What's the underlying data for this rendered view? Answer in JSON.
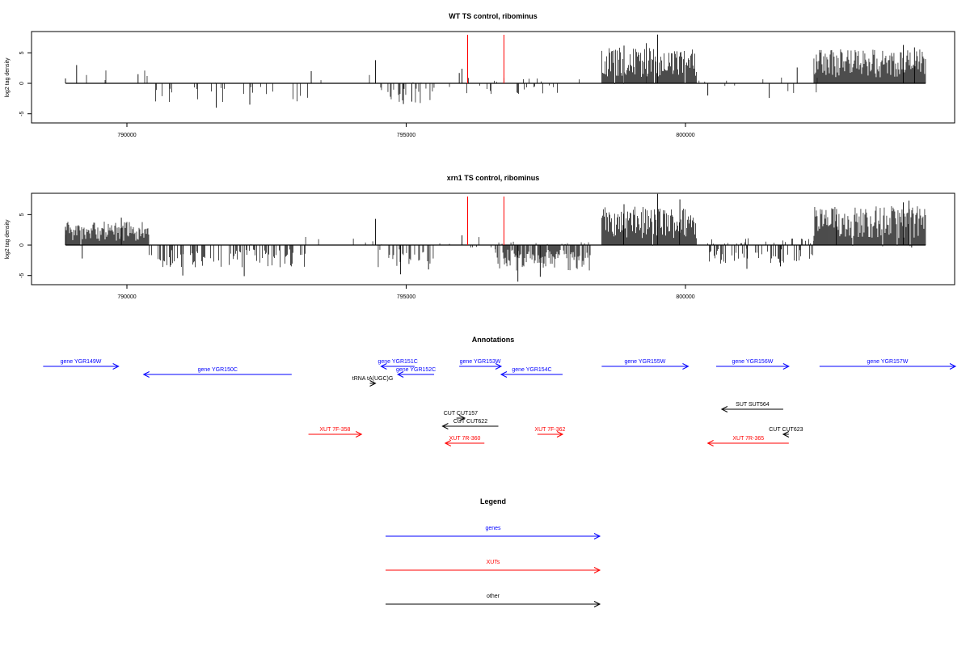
{
  "chart_data": [
    {
      "type": "bar",
      "title": "WT TS control, ribominus",
      "ylabel": "log2 tag density",
      "xlabel": "",
      "xlim": [
        788200,
        804900
      ],
      "ylim": [
        -6.5,
        8.5
      ],
      "x_ticks": [
        790000,
        795000,
        800000
      ],
      "x_tick_labels": [
        "790000",
        "795000",
        "800000"
      ],
      "y_ticks": [
        -5,
        0,
        5
      ],
      "y_tick_labels": [
        "-5",
        "0",
        "5"
      ],
      "baseline": 0,
      "x_range": [
        788900,
        804300
      ],
      "grid": false,
      "density_segments": [
        {
          "x": [
            788900,
            790500
          ],
          "pos": 2.0,
          "neg": 0.1,
          "density": 0.05
        },
        {
          "x": [
            790500,
            793300
          ],
          "pos": 0.1,
          "neg": 2.2,
          "density": 0.12
        },
        {
          "x": [
            793300,
            794500
          ],
          "pos": 1.3,
          "neg": 0.1,
          "density": 0.03
        },
        {
          "x": [
            794500,
            795500
          ],
          "pos": 0.2,
          "neg": 2.4,
          "density": 0.25
        },
        {
          "x": [
            795500,
            796000
          ],
          "pos": 0.1,
          "neg": 0.5,
          "density": 0.05
        },
        {
          "x": [
            796000,
            798200
          ],
          "pos": 0.7,
          "neg": 1.3,
          "density": 0.15
        },
        {
          "x": [
            798500,
            800200
          ],
          "pos": 4.2,
          "neg": 0.1,
          "density": 1.0
        },
        {
          "x": [
            800200,
            802600
          ],
          "pos": 0.7,
          "neg": 1.3,
          "density": 0.06
        },
        {
          "x": [
            802300,
            804300
          ],
          "pos": 4.0,
          "neg": 0.1,
          "density": 1.0
        }
      ],
      "highlight_lines": [
        {
          "x": 796100,
          "color": "#ff0000"
        },
        {
          "x": 796750,
          "color": "#ff0000"
        }
      ],
      "peaks": [
        {
          "x": 788900,
          "y": 0.8
        },
        {
          "x": 789100,
          "y": 3.0
        },
        {
          "x": 790200,
          "y": 1.5
        },
        {
          "x": 791600,
          "y": -4.0
        },
        {
          "x": 792200,
          "y": -3.5
        },
        {
          "x": 793300,
          "y": 2.0
        },
        {
          "x": 794450,
          "y": 3.8
        },
        {
          "x": 794950,
          "y": -3.4
        },
        {
          "x": 795100,
          "y": -3.0
        },
        {
          "x": 795950,
          "y": 1.7
        },
        {
          "x": 796000,
          "y": 2.4
        },
        {
          "x": 799500,
          "y": 8.0
        },
        {
          "x": 799300,
          "y": 6.6
        },
        {
          "x": 798900,
          "y": 6.2
        },
        {
          "x": 800400,
          "y": -2.0
        },
        {
          "x": 801500,
          "y": -2.4
        },
        {
          "x": 802000,
          "y": 2.6
        },
        {
          "x": 803900,
          "y": 6.3
        },
        {
          "x": 804100,
          "y": 5.9
        }
      ]
    },
    {
      "type": "bar",
      "title": "xrn1 TS control, ribominus",
      "ylabel": "log2 tag density",
      "xlabel": "",
      "xlim": [
        788200,
        804900
      ],
      "ylim": [
        -6.5,
        8.5
      ],
      "x_ticks": [
        790000,
        795000,
        800000
      ],
      "x_tick_labels": [
        "790000",
        "795000",
        "800000"
      ],
      "y_ticks": [
        -5,
        0,
        5
      ],
      "y_tick_labels": [
        "-5",
        "0",
        "5"
      ],
      "baseline": 0,
      "x_range": [
        788900,
        804300
      ],
      "grid": false,
      "density_segments": [
        {
          "x": [
            788900,
            790400
          ],
          "pos": 2.8,
          "neg": 0.1,
          "density": 1.0
        },
        {
          "x": [
            790400,
            793200
          ],
          "pos": 0.1,
          "neg": 2.6,
          "density": 0.4
        },
        {
          "x": [
            793200,
            794500
          ],
          "pos": 1.2,
          "neg": 0.1,
          "density": 0.05
        },
        {
          "x": [
            794500,
            795500
          ],
          "pos": 0.3,
          "neg": 2.6,
          "density": 0.35
        },
        {
          "x": [
            795500,
            796000
          ],
          "pos": 0.3,
          "neg": 0.5,
          "density": 0.1
        },
        {
          "x": [
            796000,
            796600
          ],
          "pos": 1.0,
          "neg": 0.6,
          "density": 0.2
        },
        {
          "x": [
            796600,
            798300
          ],
          "pos": 0.4,
          "neg": 3.0,
          "density": 0.9
        },
        {
          "x": [
            798500,
            800200
          ],
          "pos": 4.5,
          "neg": 0.1,
          "density": 1.0
        },
        {
          "x": [
            800400,
            802300
          ],
          "pos": 0.8,
          "neg": 2.2,
          "density": 0.55
        },
        {
          "x": [
            802300,
            804300
          ],
          "pos": 4.6,
          "neg": 0.2,
          "density": 1.0
        }
      ],
      "highlight_lines": [
        {
          "x": 796100,
          "color": "#ff0000"
        },
        {
          "x": 796750,
          "color": "#ff0000"
        }
      ],
      "peaks": [
        {
          "x": 788900,
          "y": 3.0
        },
        {
          "x": 789200,
          "y": -2.2
        },
        {
          "x": 789900,
          "y": 4.5
        },
        {
          "x": 791000,
          "y": -5.0
        },
        {
          "x": 792100,
          "y": -5.1
        },
        {
          "x": 794450,
          "y": 4.3
        },
        {
          "x": 794900,
          "y": -4.8
        },
        {
          "x": 795400,
          "y": -4.0
        },
        {
          "x": 796000,
          "y": 1.6
        },
        {
          "x": 797000,
          "y": -6.0
        },
        {
          "x": 797400,
          "y": -5.2
        },
        {
          "x": 799500,
          "y": 8.4
        },
        {
          "x": 799900,
          "y": 7.5
        },
        {
          "x": 798900,
          "y": 6.7
        },
        {
          "x": 801100,
          "y": -3.9
        },
        {
          "x": 801700,
          "y": -3.5
        },
        {
          "x": 803900,
          "y": 7.0
        },
        {
          "x": 804000,
          "y": 7.3
        },
        {
          "x": 802700,
          "y": 5.0
        },
        {
          "x": 804050,
          "y": -0.4
        }
      ]
    }
  ],
  "annotations": {
    "title": "Annotations",
    "features": [
      {
        "label": "gene YGR149W",
        "color": "#0000ff",
        "start": 788500,
        "end": 789850,
        "dir": "right",
        "row": 0
      },
      {
        "label": "gene YGR150C",
        "color": "#0000ff",
        "start": 790300,
        "end": 792950,
        "dir": "left",
        "row": 1
      },
      {
        "label": "tRNA tA(UGC)G",
        "color": "#000000",
        "start": 794350,
        "end": 794450,
        "dir": "right",
        "row": 2
      },
      {
        "label": "gene YGR151C",
        "color": "#0000ff",
        "start": 794550,
        "end": 795150,
        "dir": "left",
        "row": 0
      },
      {
        "label": "gene YGR152C",
        "color": "#0000ff",
        "start": 794850,
        "end": 795500,
        "dir": "left",
        "row": 1
      },
      {
        "label": "gene YGR153W",
        "color": "#0000ff",
        "start": 795950,
        "end": 796700,
        "dir": "right",
        "row": 0
      },
      {
        "label": "gene YGR154C",
        "color": "#0000ff",
        "start": 796700,
        "end": 797800,
        "dir": "left",
        "row": 1
      },
      {
        "label": "gene YGR155W",
        "color": "#0000ff",
        "start": 798500,
        "end": 800050,
        "dir": "right",
        "row": 0
      },
      {
        "label": "gene YGR156W",
        "color": "#0000ff",
        "start": 800550,
        "end": 801850,
        "dir": "right",
        "row": 0
      },
      {
        "label": "gene YGR157W",
        "color": "#0000ff",
        "start": 802400,
        "end": 804900,
        "dir": "right",
        "row": 0
      },
      {
        "label": "CUT CUT157",
        "color": "#000000",
        "start": 795900,
        "end": 796050,
        "dir": "right",
        "row": 5
      },
      {
        "label": "CUT CUT622",
        "color": "#000000",
        "start": 795650,
        "end": 796650,
        "dir": "left",
        "row": 6
      },
      {
        "label": "SUT SUT564",
        "color": "#000000",
        "start": 800650,
        "end": 801750,
        "dir": "left",
        "row": 4
      },
      {
        "label": "CUT CUT623",
        "color": "#000000",
        "start": 801750,
        "end": 801850,
        "dir": "left",
        "row": 7
      },
      {
        "label": "XUT 7F-358",
        "color": "#ff0000",
        "start": 793250,
        "end": 794200,
        "dir": "right",
        "row": 8
      },
      {
        "label": "XUT 7R-360",
        "color": "#ff0000",
        "start": 795700,
        "end": 796400,
        "dir": "left",
        "row": 9
      },
      {
        "label": "XUT 7F-362",
        "color": "#ff0000",
        "start": 797350,
        "end": 797800,
        "dir": "right",
        "row": 8
      },
      {
        "label": "XUT 7R-365",
        "color": "#ff0000",
        "start": 800400,
        "end": 801850,
        "dir": "left",
        "row": 9
      }
    ]
  },
  "legend": {
    "title": "Legend",
    "items": [
      {
        "label": "genes",
        "color": "#0000ff"
      },
      {
        "label": "XUTs",
        "color": "#ff0000"
      },
      {
        "label": "other",
        "color": "#000000"
      }
    ]
  }
}
